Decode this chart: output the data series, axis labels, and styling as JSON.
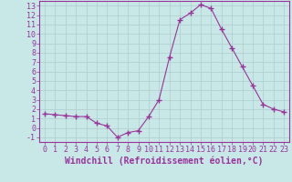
{
  "x": [
    0,
    1,
    2,
    3,
    4,
    5,
    6,
    7,
    8,
    9,
    10,
    11,
    12,
    13,
    14,
    15,
    16,
    17,
    18,
    19,
    20,
    21,
    22,
    23
  ],
  "y": [
    1.5,
    1.4,
    1.3,
    1.2,
    1.2,
    0.5,
    0.2,
    -1.0,
    -0.5,
    -0.3,
    1.2,
    3.0,
    7.5,
    11.5,
    12.2,
    13.1,
    12.7,
    10.5,
    8.5,
    6.5,
    4.5,
    2.5,
    2.0,
    1.7
  ],
  "line_color": "#993399",
  "marker": "+",
  "marker_size": 4,
  "background_color": "#c8e8e8",
  "grid_color": "#b0cccc",
  "xlabel": "Windchill (Refroidissement éolien,°C)",
  "xlim": [
    -0.5,
    23.5
  ],
  "ylim": [
    -1.5,
    13.5
  ],
  "yticks": [
    -1,
    0,
    1,
    2,
    3,
    4,
    5,
    6,
    7,
    8,
    9,
    10,
    11,
    12,
    13
  ],
  "xticks": [
    0,
    1,
    2,
    3,
    4,
    5,
    6,
    7,
    8,
    9,
    10,
    11,
    12,
    13,
    14,
    15,
    16,
    17,
    18,
    19,
    20,
    21,
    22,
    23
  ],
  "tick_color": "#993399",
  "spine_color": "#993399",
  "label_fontsize": 7,
  "tick_fontsize": 6
}
